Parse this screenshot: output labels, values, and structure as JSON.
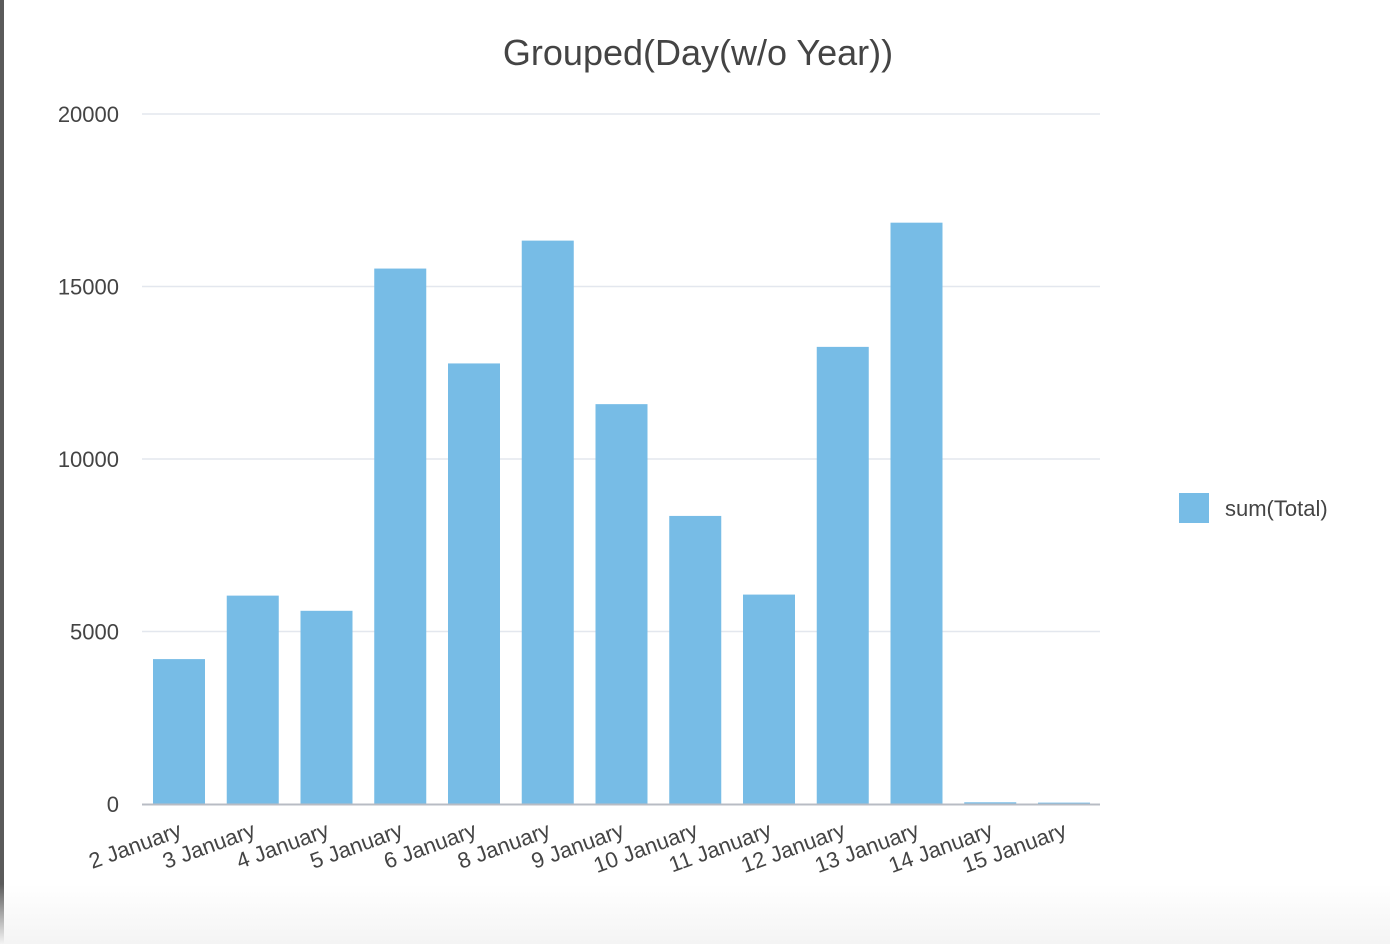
{
  "chart_data": {
    "type": "bar",
    "title": "Grouped(Day(w/o Year))",
    "xlabel": "",
    "ylabel": "",
    "categories": [
      "2 January",
      "3 January",
      "4 January",
      "5 January",
      "6 January",
      "8 January",
      "9 January",
      "10 January",
      "11 January",
      "12 January",
      "13 January",
      "14 January",
      "15 January"
    ],
    "series": [
      {
        "name": "sum(Total)",
        "color": "#77bce6",
        "values": [
          4200,
          6040,
          5600,
          15520,
          12770,
          16330,
          11590,
          8350,
          6070,
          13250,
          16850,
          50,
          40
        ]
      }
    ],
    "ylim": [
      0,
      20000
    ],
    "yticks": [
      "0",
      "5000",
      "10000",
      "15000",
      "20000"
    ],
    "grid": true,
    "legend_position": "right"
  }
}
